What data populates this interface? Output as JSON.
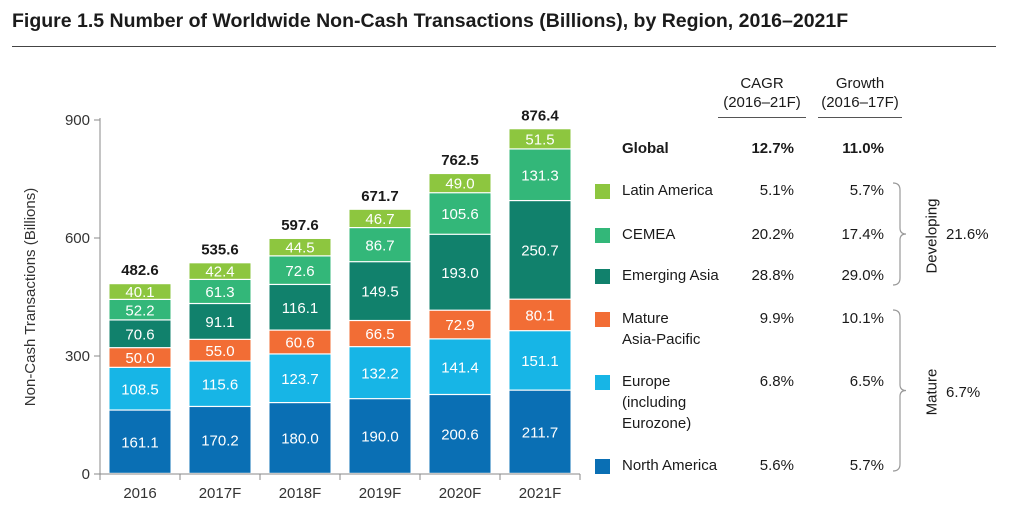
{
  "title": "Figure 1.5 Number of Worldwide Non-Cash Transactions (Billions), by Region, 2016–2021F",
  "chart_data": {
    "type": "bar",
    "stacked": true,
    "categories": [
      "2016",
      "2017F",
      "2018F",
      "2019F",
      "2020F",
      "2021F"
    ],
    "series": [
      {
        "name": "North America",
        "color": "#0a6fb4",
        "values": [
          161.1,
          170.2,
          180.0,
          190.0,
          200.6,
          211.7
        ]
      },
      {
        "name": "Europe (including Eurozone)",
        "color": "#17b5e6",
        "values": [
          108.5,
          115.6,
          123.7,
          132.2,
          141.4,
          151.1
        ]
      },
      {
        "name": "Mature Asia-Pacific",
        "color": "#f26d35",
        "values": [
          50.0,
          55.0,
          60.6,
          66.5,
          72.9,
          80.1
        ]
      },
      {
        "name": "Emerging Asia",
        "color": "#11816c",
        "values": [
          70.6,
          91.1,
          116.1,
          149.5,
          193.0,
          250.7
        ]
      },
      {
        "name": "CEMEA",
        "color": "#33b779",
        "values": [
          52.2,
          61.3,
          72.6,
          86.7,
          105.6,
          131.3
        ]
      },
      {
        "name": "Latin America",
        "color": "#8dc63f",
        "values": [
          40.1,
          42.4,
          44.5,
          46.7,
          49.0,
          51.5
        ]
      }
    ],
    "value_labels": [
      [
        "161.1",
        "170.2",
        "180.0",
        "190.0",
        "200.6",
        "211.7"
      ],
      [
        "108.5",
        "115.6",
        "123.7",
        "132.2",
        "141.4",
        "151.1"
      ],
      [
        "50.0",
        "55.0",
        "60.6",
        "66.5",
        "72.9",
        "80.1"
      ],
      [
        "70.6",
        "91.1",
        "116.1",
        "149.5",
        "193.0",
        "250.7"
      ],
      [
        "52.2",
        "61.3",
        "72.6",
        "86.7",
        "105.6",
        "131.3"
      ],
      [
        "40.1",
        "42.4",
        "44.5",
        "46.7",
        "49.0",
        "51.5"
      ]
    ],
    "totals": [
      "482.6",
      "535.6",
      "597.6",
      "671.7",
      "762.5",
      "876.4"
    ],
    "ylabel": "Non-Cash Transactions (Billions)",
    "xlabel": "",
    "ylim": [
      0,
      900
    ],
    "yticks": [
      0,
      300,
      600,
      900
    ],
    "ytick_labels": [
      "0",
      "300",
      "600",
      "900"
    ],
    "grid": false,
    "legend_position": "right"
  },
  "table": {
    "col_cagr": [
      "CAGR",
      "(2016–21F)"
    ],
    "col_growth": [
      "Growth",
      "(2016–17F)"
    ],
    "global": {
      "label": "Global",
      "cagr": "12.7%",
      "growth": "11.0%"
    },
    "rows": [
      {
        "label": [
          "Latin America"
        ],
        "cagr": "5.1%",
        "growth": "5.7%",
        "color": "#8dc63f"
      },
      {
        "label": [
          "CEMEA"
        ],
        "cagr": "20.2%",
        "growth": "17.4%",
        "color": "#33b779"
      },
      {
        "label": [
          "Emerging Asia"
        ],
        "cagr": "28.8%",
        "growth": "29.0%",
        "color": "#11816c"
      },
      {
        "label": [
          "Mature",
          "Asia-Pacific"
        ],
        "cagr": "9.9%",
        "growth": "10.1%",
        "color": "#f26d35"
      },
      {
        "label": [
          "Europe",
          "(including",
          "Eurozone)"
        ],
        "cagr": "6.8%",
        "growth": "6.5%",
        "color": "#17b5e6"
      },
      {
        "label": [
          "North America"
        ],
        "cagr": "5.6%",
        "growth": "5.7%",
        "color": "#0a6fb4"
      }
    ],
    "groups": [
      {
        "name": "Developing",
        "value": "21.6%"
      },
      {
        "name": "Mature",
        "value": "6.7%"
      }
    ]
  }
}
